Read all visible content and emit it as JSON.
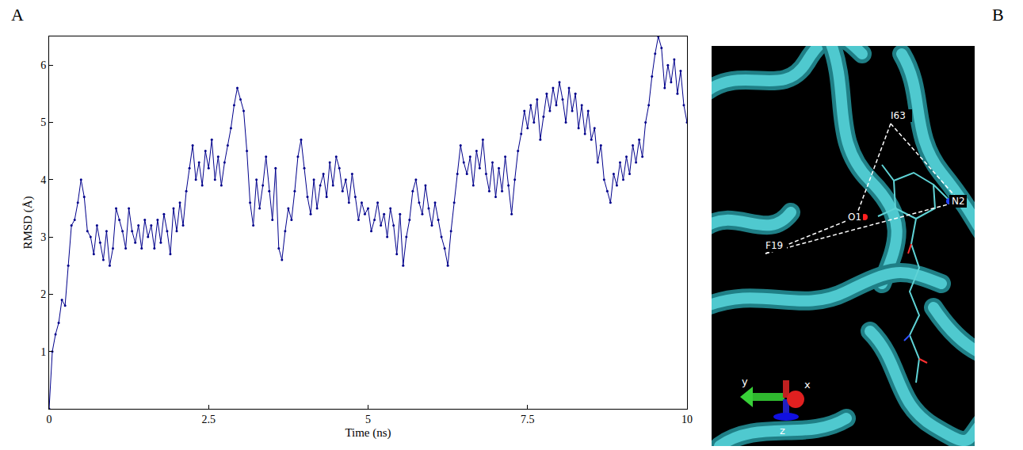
{
  "chart_data": {
    "type": "line",
    "panel_label": "A",
    "x_label": "Time (ns)",
    "y_label": "RMSD (Å)",
    "x": [
      0,
      0.05,
      0.1,
      0.15,
      0.2,
      0.25,
      0.3,
      0.35,
      0.4,
      0.45,
      0.5,
      0.55,
      0.6,
      0.65,
      0.7,
      0.75,
      0.8,
      0.85,
      0.9,
      0.95,
      1.0,
      1.05,
      1.1,
      1.15,
      1.2,
      1.25,
      1.3,
      1.35,
      1.4,
      1.45,
      1.5,
      1.55,
      1.6,
      1.65,
      1.7,
      1.75,
      1.8,
      1.85,
      1.9,
      1.95,
      2.0,
      2.05,
      2.1,
      2.15,
      2.2,
      2.25,
      2.3,
      2.35,
      2.4,
      2.45,
      2.5,
      2.55,
      2.6,
      2.65,
      2.7,
      2.75,
      2.8,
      2.85,
      2.9,
      2.95,
      3.0,
      3.05,
      3.1,
      3.15,
      3.2,
      3.25,
      3.3,
      3.35,
      3.4,
      3.45,
      3.5,
      3.55,
      3.6,
      3.65,
      3.7,
      3.75,
      3.8,
      3.85,
      3.9,
      3.95,
      4.0,
      4.05,
      4.1,
      4.15,
      4.2,
      4.25,
      4.3,
      4.35,
      4.4,
      4.45,
      4.5,
      4.55,
      4.6,
      4.65,
      4.7,
      4.75,
      4.8,
      4.85,
      4.9,
      4.95,
      5.0,
      5.05,
      5.1,
      5.15,
      5.2,
      5.25,
      5.3,
      5.35,
      5.4,
      5.45,
      5.5,
      5.55,
      5.6,
      5.65,
      5.7,
      5.75,
      5.8,
      5.85,
      5.9,
      5.95,
      6.0,
      6.05,
      6.1,
      6.15,
      6.2,
      6.25,
      6.3,
      6.35,
      6.4,
      6.45,
      6.5,
      6.55,
      6.6,
      6.65,
      6.7,
      6.75,
      6.8,
      6.85,
      6.9,
      6.95,
      7.0,
      7.05,
      7.1,
      7.15,
      7.2,
      7.25,
      7.3,
      7.35,
      7.4,
      7.45,
      7.5,
      7.55,
      7.6,
      7.65,
      7.7,
      7.75,
      7.8,
      7.85,
      7.9,
      7.95,
      8.0,
      8.05,
      8.1,
      8.15,
      8.2,
      8.25,
      8.3,
      8.35,
      8.4,
      8.45,
      8.5,
      8.55,
      8.6,
      8.65,
      8.7,
      8.75,
      8.8,
      8.85,
      8.9,
      8.95,
      9.0,
      9.05,
      9.1,
      9.15,
      9.2,
      9.25,
      9.3,
      9.35,
      9.4,
      9.45,
      9.5,
      9.55,
      9.6,
      9.65,
      9.7,
      9.75,
      9.8,
      9.85,
      9.9,
      9.95,
      10.0
    ],
    "values": [
      0,
      1.0,
      1.3,
      1.5,
      1.9,
      1.8,
      2.5,
      3.2,
      3.3,
      3.6,
      4.0,
      3.7,
      3.1,
      3.0,
      2.7,
      3.2,
      2.9,
      2.6,
      3.1,
      2.5,
      2.8,
      3.5,
      3.3,
      3.1,
      2.8,
      3.5,
      3.1,
      2.9,
      3.2,
      2.8,
      3.3,
      3.0,
      3.2,
      2.8,
      3.3,
      2.9,
      3.4,
      3.1,
      2.7,
      3.5,
      3.1,
      3.6,
      3.2,
      3.8,
      4.2,
      4.6,
      4.0,
      4.3,
      3.9,
      4.5,
      4.2,
      4.7,
      4.0,
      4.4,
      3.9,
      4.3,
      4.6,
      4.9,
      5.3,
      5.6,
      5.4,
      5.2,
      4.5,
      3.6,
      3.2,
      4.0,
      3.5,
      3.9,
      4.4,
      3.8,
      3.3,
      4.2,
      2.8,
      2.6,
      3.1,
      3.5,
      3.3,
      3.8,
      4.4,
      4.7,
      4.2,
      3.7,
      3.4,
      4.0,
      3.5,
      3.9,
      4.1,
      3.7,
      4.3,
      3.9,
      4.4,
      4.2,
      3.8,
      4.0,
      3.6,
      4.1,
      3.7,
      3.3,
      3.6,
      3.4,
      3.5,
      3.1,
      3.3,
      3.6,
      3.2,
      3.4,
      3.0,
      3.5,
      3.2,
      2.7,
      3.4,
      2.5,
      3.0,
      3.3,
      3.8,
      4.0,
      3.6,
      3.4,
      3.9,
      3.5,
      3.2,
      3.6,
      3.3,
      3.0,
      2.8,
      2.5,
      3.1,
      3.6,
      4.1,
      4.6,
      4.3,
      4.1,
      4.4,
      3.9,
      4.5,
      4.2,
      4.7,
      4.1,
      3.8,
      4.3,
      3.7,
      4.2,
      3.8,
      4.4,
      3.9,
      3.4,
      4.0,
      4.5,
      4.8,
      5.2,
      4.9,
      5.3,
      5.0,
      5.4,
      4.7,
      5.1,
      5.5,
      5.2,
      5.6,
      5.3,
      5.7,
      5.4,
      5.0,
      5.6,
      5.2,
      5.5,
      4.9,
      5.3,
      4.8,
      5.2,
      4.7,
      4.9,
      4.3,
      4.6,
      4.0,
      3.8,
      3.6,
      4.1,
      3.9,
      4.3,
      4.0,
      4.4,
      4.1,
      4.6,
      4.3,
      4.7,
      4.4,
      5.0,
      5.3,
      5.8,
      6.2,
      6.5,
      6.3,
      5.6,
      6.0,
      5.7,
      6.1,
      5.5,
      5.9,
      5.3,
      5.0
    ],
    "color": "#00008b",
    "marker": "circle",
    "line_style": "solid",
    "xlim": [
      0,
      10
    ],
    "xticks": [
      0,
      2.5,
      5,
      7.5,
      10
    ],
    "ylim": [
      0,
      6.5
    ],
    "yticks": [
      1,
      2,
      3,
      4,
      5,
      6
    ],
    "grid": false
  },
  "panel_b": {
    "label": "B",
    "atoms": [
      "I63",
      "O1",
      "N2",
      "F19"
    ],
    "axes": [
      "x",
      "y",
      "z"
    ]
  }
}
